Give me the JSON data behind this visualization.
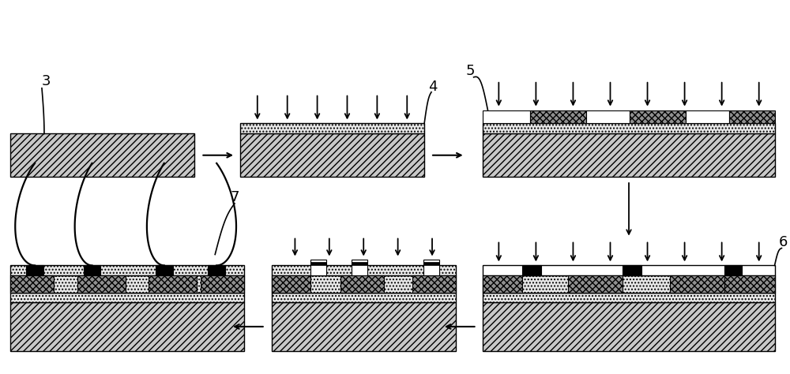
{
  "bg_color": "#ffffff",
  "figsize": [
    10.0,
    4.74
  ],
  "dpi": 100,
  "xlim": [
    0,
    10
  ],
  "ylim": [
    0,
    4.74
  ],
  "label_fontsize": 13
}
